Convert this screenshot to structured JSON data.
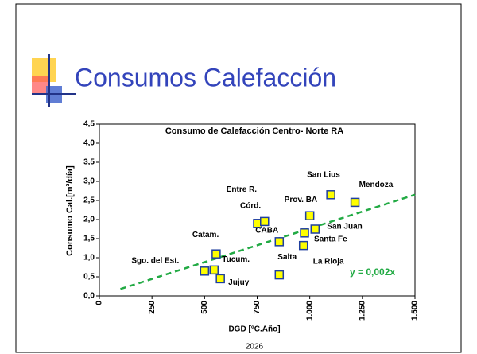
{
  "slide_title": "Consumos Calefacción",
  "footer": "2026",
  "chart_data": {
    "type": "scatter",
    "title": "Consumo de Calefacción Centro- Norte RA",
    "x_label": "DGD [°C.Año]",
    "y_label": "Consumo Cal.[m³/día]",
    "labels": [
      "Sgo. del Est.",
      "Tucum.",
      "Jujuy",
      "Catam.",
      "Córd.",
      "Entre R.",
      "CABA",
      "Salta",
      "Prov. BA",
      "San Lius",
      "Mendoza",
      "San Juan",
      "Santa Fe",
      "La Rioja"
    ],
    "x": [
      500,
      545,
      575,
      555,
      752,
      785,
      855,
      855,
      1000,
      1100,
      1215,
      1025,
      975,
      970
    ],
    "y": [
      0.65,
      0.68,
      0.45,
      1.1,
      1.9,
      1.95,
      1.42,
      0.55,
      2.1,
      2.65,
      2.45,
      1.75,
      1.65,
      1.32
    ],
    "color": "#ffff00",
    "edge_color": "#1f3f9f",
    "trendline": {
      "x": [
        100,
        1500
      ],
      "y": [
        0.18,
        2.65
      ],
      "color": "#22aa44"
    },
    "annotation": "y = 0,002x",
    "xlim": [
      0,
      1500
    ],
    "ylim": [
      0,
      4.5
    ],
    "xticks": [
      0,
      250,
      500,
      750,
      {
        "value": 1000,
        "label": "1.000"
      },
      {
        "value": 1250,
        "label": "1.250"
      },
      {
        "value": 1500,
        "label": "1.500"
      }
    ],
    "yticks": [
      {
        "value": 0,
        "label": "0,0"
      },
      {
        "value": 0.5,
        "label": "0,5"
      },
      {
        "value": 1,
        "label": "1,0"
      },
      {
        "value": 1.5,
        "label": "1,5"
      },
      {
        "value": 2,
        "label": "2,0"
      },
      {
        "value": 2.5,
        "label": "2,5"
      },
      {
        "value": 3,
        "label": "3,0"
      },
      {
        "value": 3.5,
        "label": "3,5"
      },
      {
        "value": 4,
        "label": "4,0"
      },
      {
        "value": 4.5,
        "label": "4,5"
      }
    ]
  }
}
